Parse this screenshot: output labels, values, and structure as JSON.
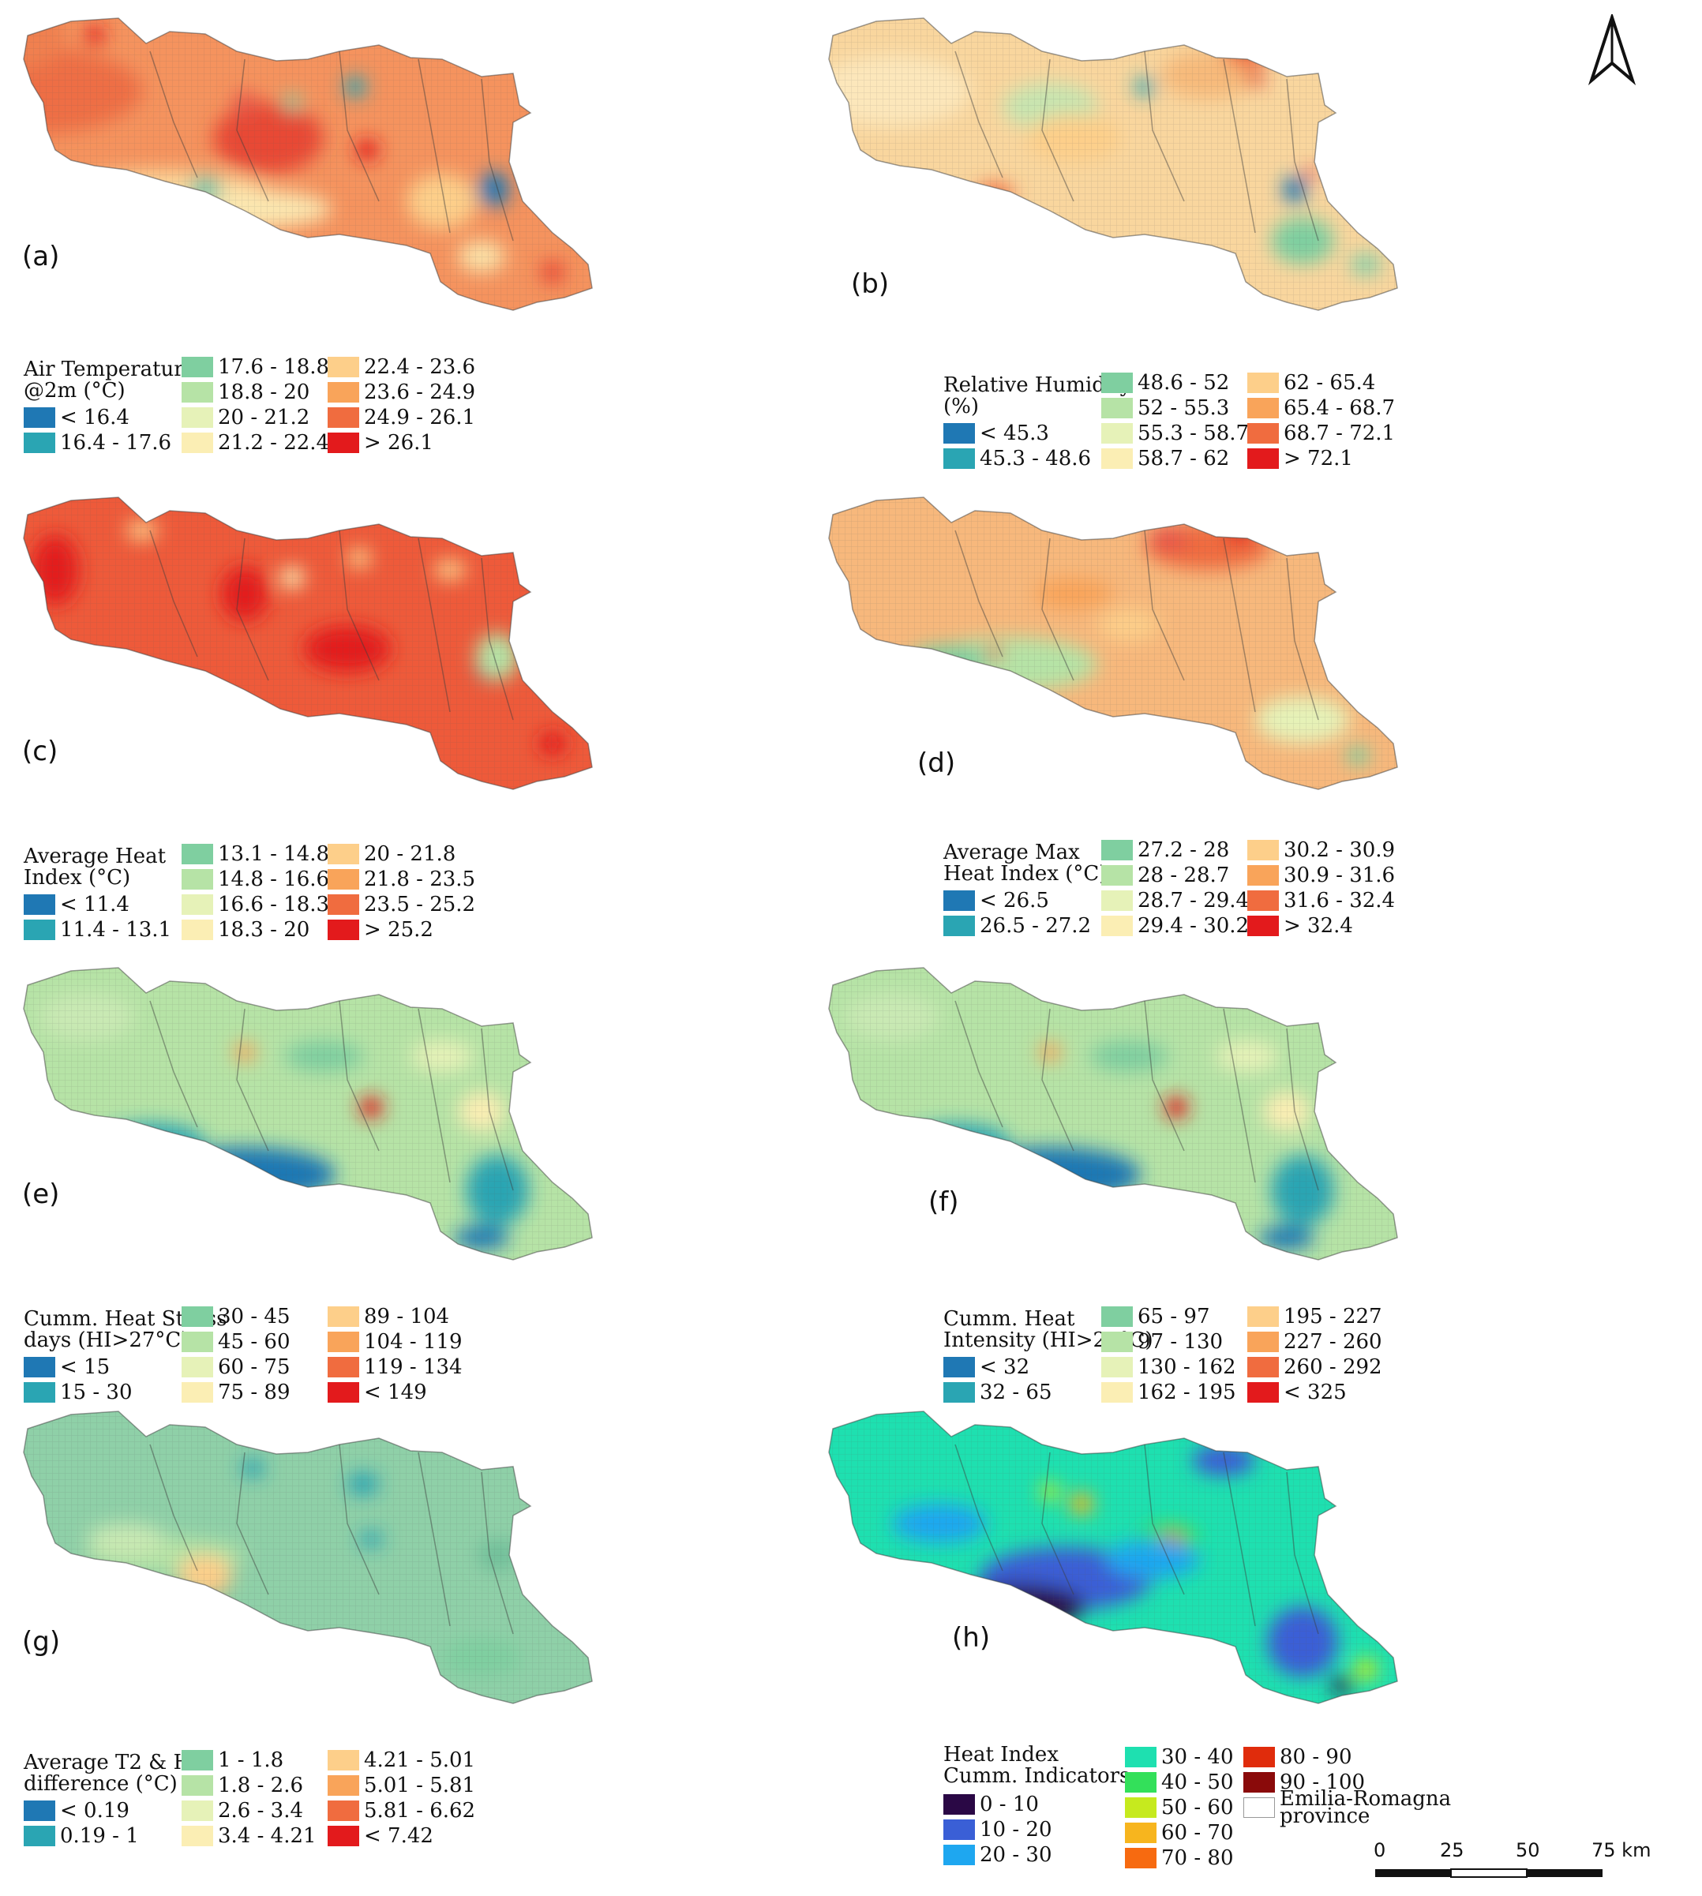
{
  "north_arrow_icon": "north-arrow-icon",
  "scale_bar": {
    "ticks": [
      "0",
      "25",
      "50",
      "75 km"
    ]
  },
  "panels": [
    {
      "label": "(a)",
      "palette": "warm",
      "legend_title": "Air Temperature\n@2m (°C)",
      "classes": [
        {
          "label": "< 16.4",
          "color": "#1f78b4"
        },
        {
          "label": "16.4 - 17.6",
          "color": "#2aa5b3"
        },
        {
          "label": "17.6 - 18.8",
          "color": "#7fcfa0"
        },
        {
          "label": "18.8 - 20",
          "color": "#b6e3a6"
        },
        {
          "label": "20 - 21.2",
          "color": "#e6f2b8"
        },
        {
          "label": "21.2 - 22.4",
          "color": "#fbeeb4"
        },
        {
          "label": "22.4 - 23.6",
          "color": "#fdcf8a"
        },
        {
          "label": "23.6 - 24.9",
          "color": "#f9a45a"
        },
        {
          "label": "24.9 - 26.1",
          "color": "#f06c3f"
        },
        {
          "label": "> 26.1",
          "color": "#e31a1c"
        }
      ]
    },
    {
      "label": "(b)",
      "palette": "pale",
      "legend_title": "Relative Humidity\n(%)",
      "classes": [
        {
          "label": "< 45.3",
          "color": "#1f78b4"
        },
        {
          "label": "45.3 - 48.6",
          "color": "#2aa5b3"
        },
        {
          "label": "48.6 - 52",
          "color": "#7fcfa0"
        },
        {
          "label": "52 - 55.3",
          "color": "#b6e3a6"
        },
        {
          "label": "55.3 - 58.7",
          "color": "#e6f2b8"
        },
        {
          "label": "58.7 - 62",
          "color": "#fbeeb4"
        },
        {
          "label": "62 - 65.4",
          "color": "#fdcf8a"
        },
        {
          "label": "65.4 - 68.7",
          "color": "#f9a45a"
        },
        {
          "label": "68.7 - 72.1",
          "color": "#f06c3f"
        },
        {
          "label": "> 72.1",
          "color": "#e31a1c"
        }
      ]
    },
    {
      "label": "(c)",
      "palette": "hot",
      "legend_title": "Average Heat\nIndex (°C)",
      "classes": [
        {
          "label": "< 11.4",
          "color": "#1f78b4"
        },
        {
          "label": "11.4 - 13.1",
          "color": "#2aa5b3"
        },
        {
          "label": "13.1 - 14.8",
          "color": "#7fcfa0"
        },
        {
          "label": "14.8 - 16.6",
          "color": "#b6e3a6"
        },
        {
          "label": "16.6 - 18.3",
          "color": "#e6f2b8"
        },
        {
          "label": "18.3 - 20",
          "color": "#fbeeb4"
        },
        {
          "label": "20 - 21.8",
          "color": "#fdcf8a"
        },
        {
          "label": "21.8 - 23.5",
          "color": "#f9a45a"
        },
        {
          "label": "23.5 - 25.2",
          "color": "#f06c3f"
        },
        {
          "label": "> 25.2",
          "color": "#e31a1c"
        }
      ]
    },
    {
      "label": "(d)",
      "palette": "mixed",
      "legend_title": "Average Max\nHeat Index (°C)",
      "classes": [
        {
          "label": "< 26.5",
          "color": "#1f78b4"
        },
        {
          "label": "26.5 - 27.2",
          "color": "#2aa5b3"
        },
        {
          "label": "27.2 - 28",
          "color": "#7fcfa0"
        },
        {
          "label": "28 - 28.7",
          "color": "#b6e3a6"
        },
        {
          "label": "28.7 - 29.4",
          "color": "#e6f2b8"
        },
        {
          "label": "29.4 - 30.2",
          "color": "#fbeeb4"
        },
        {
          "label": "30.2 - 30.9",
          "color": "#fdcf8a"
        },
        {
          "label": "30.9 - 31.6",
          "color": "#f9a45a"
        },
        {
          "label": "31.6 - 32.4",
          "color": "#f06c3f"
        },
        {
          "label": "> 32.4",
          "color": "#e31a1c"
        }
      ]
    },
    {
      "label": "(e)",
      "palette": "cool",
      "legend_title": "Cumm. Heat Stress\ndays (HI>27°C)",
      "classes": [
        {
          "label": "< 15",
          "color": "#1f78b4"
        },
        {
          "label": "15 - 30",
          "color": "#2aa5b3"
        },
        {
          "label": "30 - 45",
          "color": "#7fcfa0"
        },
        {
          "label": "45 - 60",
          "color": "#b6e3a6"
        },
        {
          "label": "60 - 75",
          "color": "#e6f2b8"
        },
        {
          "label": "75 - 89",
          "color": "#fbeeb4"
        },
        {
          "label": "89 - 104",
          "color": "#fdcf8a"
        },
        {
          "label": "104 - 119",
          "color": "#f9a45a"
        },
        {
          "label": "119 - 134",
          "color": "#f06c3f"
        },
        {
          "label": "< 149",
          "color": "#e31a1c"
        }
      ]
    },
    {
      "label": "(f)",
      "palette": "cool",
      "legend_title": "Cumm. Heat\nIntensity (HI>27°C)",
      "classes": [
        {
          "label": "< 32",
          "color": "#1f78b4"
        },
        {
          "label": "32 - 65",
          "color": "#2aa5b3"
        },
        {
          "label": "65 - 97",
          "color": "#7fcfa0"
        },
        {
          "label": "97 - 130",
          "color": "#b6e3a6"
        },
        {
          "label": "130 - 162",
          "color": "#e6f2b8"
        },
        {
          "label": "162 - 195",
          "color": "#fbeeb4"
        },
        {
          "label": "195 - 227",
          "color": "#fdcf8a"
        },
        {
          "label": "227 - 260",
          "color": "#f9a45a"
        },
        {
          "label": "260 - 292",
          "color": "#f06c3f"
        },
        {
          "label": "< 325",
          "color": "#e31a1c"
        }
      ]
    },
    {
      "label": "(g)",
      "palette": "green",
      "legend_title": "Average T2 & HI\ndifference (°C)",
      "classes": [
        {
          "label": "< 0.19",
          "color": "#1f78b4"
        },
        {
          "label": "0.19 - 1",
          "color": "#2aa5b3"
        },
        {
          "label": "1 - 1.8",
          "color": "#7fcfa0"
        },
        {
          "label": "1.8 - 2.6",
          "color": "#b6e3a6"
        },
        {
          "label": "2.6 - 3.4",
          "color": "#e6f2b8"
        },
        {
          "label": "3.4 - 4.21",
          "color": "#fbeeb4"
        },
        {
          "label": "4.21 - 5.01",
          "color": "#fdcf8a"
        },
        {
          "label": "5.01 - 5.81",
          "color": "#f9a45a"
        },
        {
          "label": "5.81 - 6.62",
          "color": "#f06c3f"
        },
        {
          "label": "< 7.42",
          "color": "#e31a1c"
        }
      ]
    },
    {
      "label": "(h)",
      "palette": "jet",
      "legend_title": "Heat Index\nCumm. Indicators",
      "classes": [
        {
          "label": "0 - 10",
          "color": "#2a0845"
        },
        {
          "label": "10 - 20",
          "color": "#3a5fd6"
        },
        {
          "label": "20 - 30",
          "color": "#1ea7f0"
        },
        {
          "label": "30 - 40",
          "color": "#1ee0b0"
        },
        {
          "label": "40 - 50",
          "color": "#33e05a"
        },
        {
          "label": "50 - 60",
          "color": "#c6ea1e"
        },
        {
          "label": "60 - 70",
          "color": "#f7b51e"
        },
        {
          "label": "70 - 80",
          "color": "#f76a10"
        },
        {
          "label": "80 - 90",
          "color": "#e02c0c"
        },
        {
          "label": "90 - 100",
          "color": "#8a0a0a"
        },
        {
          "label": "Emilia-Romagna\nprovince",
          "color": "#ffffff"
        }
      ]
    }
  ]
}
